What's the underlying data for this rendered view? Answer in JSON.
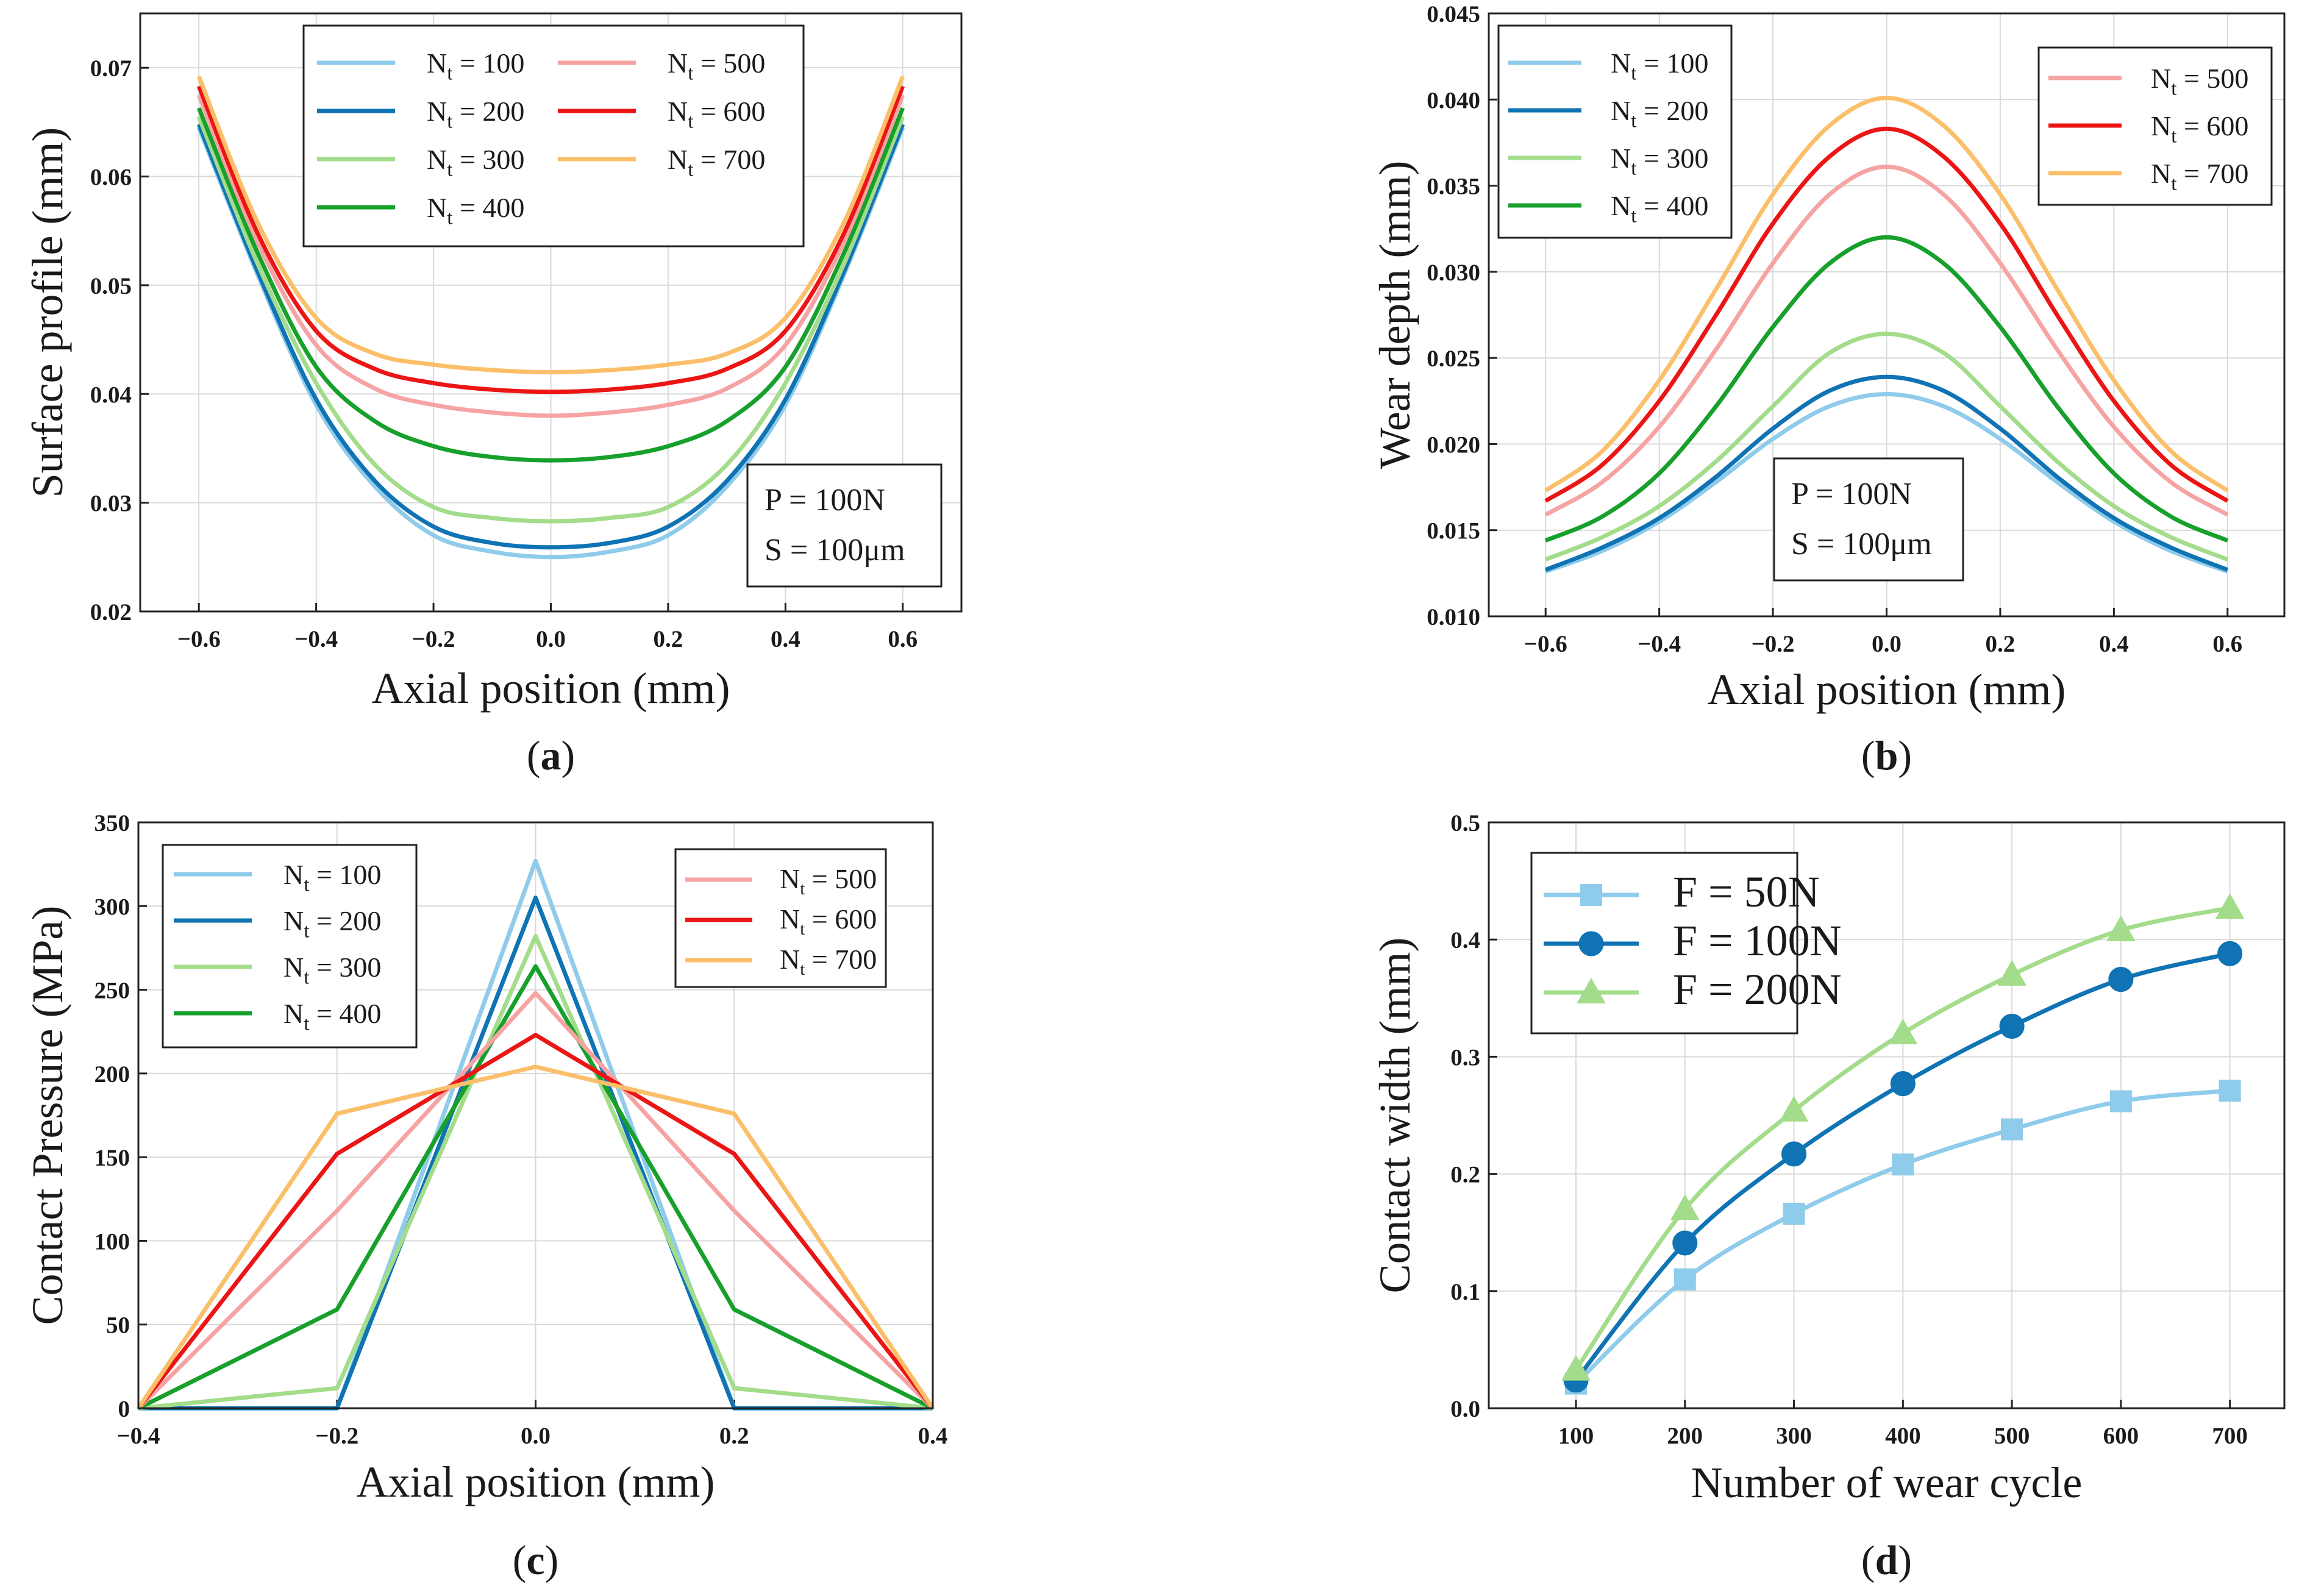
{
  "colors": {
    "nt100": "#8fcbea",
    "nt200": "#0f73b4",
    "nt300": "#a3dc8a",
    "nt400": "#17a02b",
    "nt500": "#f6a3a3",
    "nt600": "#ec1515",
    "nt700": "#fbbf6a",
    "f50": "#8fcbea",
    "f100": "#0f73b4",
    "f200": "#a3dc8a"
  },
  "chart_data": [
    {
      "id": "a",
      "type": "line",
      "caption": "a",
      "xlabel": "Axial position (mm)",
      "ylabel": "Surface profile (mm)",
      "xlim": [
        -0.7,
        0.7
      ],
      "ylim": [
        0.02,
        0.075
      ],
      "xticks": [
        -0.6,
        -0.4,
        -0.2,
        0.0,
        0.2,
        0.4,
        0.6
      ],
      "xtick_labels": [
        "−0.6",
        "−0.4",
        "−0.2",
        "0.0",
        "0.2",
        "0.4",
        "0.6"
      ],
      "yticks": [
        0.02,
        0.03,
        0.04,
        0.05,
        0.06,
        0.07
      ],
      "ytick_labels": [
        "0.02",
        "0.03",
        "0.04",
        "0.05",
        "0.06",
        "0.07"
      ],
      "grid": true,
      "legend_position": "top",
      "legend_columns": 2,
      "annotation": [
        "P = 100N",
        "S = 100μm"
      ],
      "x": [
        -0.6,
        -0.5,
        -0.4,
        -0.3,
        -0.2,
        -0.1,
        0.0,
        0.1,
        0.2,
        0.3,
        0.4,
        0.5,
        0.6
      ],
      "series": [
        {
          "name_main": "N",
          "name_sub": "t",
          "name_rest": " = 100",
          "color_key": "nt100",
          "values": [
            0.0645,
            0.051,
            0.039,
            0.0315,
            0.027,
            0.0255,
            0.025,
            0.0255,
            0.027,
            0.0315,
            0.039,
            0.051,
            0.0645
          ]
        },
        {
          "name_main": "N",
          "name_sub": "t",
          "name_rest": " = 200",
          "color_key": "nt200",
          "values": [
            0.0648,
            0.0513,
            0.0395,
            0.032,
            0.0278,
            0.0263,
            0.0259,
            0.0263,
            0.0278,
            0.032,
            0.0395,
            0.0513,
            0.0648
          ]
        },
        {
          "name_main": "N",
          "name_sub": "t",
          "name_rest": " = 300",
          "color_key": "nt300",
          "values": [
            0.0655,
            0.052,
            0.041,
            0.0335,
            0.0296,
            0.0286,
            0.0283,
            0.0286,
            0.0296,
            0.0335,
            0.041,
            0.052,
            0.0655
          ]
        },
        {
          "name_main": "N",
          "name_sub": "t",
          "name_rest": " = 400",
          "color_key": "nt400",
          "values": [
            0.0663,
            0.053,
            0.0425,
            0.0375,
            0.0352,
            0.0342,
            0.0339,
            0.0342,
            0.0352,
            0.0375,
            0.0425,
            0.053,
            0.0663
          ]
        },
        {
          "name_main": "N",
          "name_sub": "t",
          "name_rest": " = 500",
          "color_key": "nt500",
          "values": [
            0.0675,
            0.054,
            0.0445,
            0.0405,
            0.039,
            0.0383,
            0.038,
            0.0383,
            0.039,
            0.0405,
            0.0445,
            0.054,
            0.0675
          ]
        },
        {
          "name_main": "N",
          "name_sub": "t",
          "name_rest": " = 600",
          "color_key": "nt600",
          "values": [
            0.0683,
            0.0548,
            0.0458,
            0.0423,
            0.041,
            0.0404,
            0.0402,
            0.0404,
            0.041,
            0.0423,
            0.0458,
            0.0548,
            0.0683
          ]
        },
        {
          "name_main": "N",
          "name_sub": "t",
          "name_rest": " = 700",
          "color_key": "nt700",
          "values": [
            0.0692,
            0.0558,
            0.047,
            0.0437,
            0.0427,
            0.0422,
            0.042,
            0.0422,
            0.0427,
            0.0437,
            0.047,
            0.0558,
            0.0692
          ]
        }
      ]
    },
    {
      "id": "b",
      "type": "line",
      "caption": "b",
      "xlabel": "Axial position (mm)",
      "ylabel": "Wear depth (mm)",
      "xlim": [
        -0.7,
        0.7
      ],
      "ylim": [
        0.01,
        0.045
      ],
      "xticks": [
        -0.6,
        -0.4,
        -0.2,
        0.0,
        0.2,
        0.4,
        0.6
      ],
      "xtick_labels": [
        "−0.6",
        "−0.4",
        "−0.2",
        "0.0",
        "0.2",
        "0.4",
        "0.6"
      ],
      "yticks": [
        0.01,
        0.015,
        0.02,
        0.025,
        0.03,
        0.035,
        0.04,
        0.045
      ],
      "ytick_labels": [
        "0.010",
        "0.015",
        "0.020",
        "0.025",
        "0.030",
        "0.035",
        "0.040",
        "0.045"
      ],
      "grid": true,
      "legend_position": "top-left and top-right",
      "annotation": [
        "P = 100N",
        "S = 100μm"
      ],
      "x": [
        -0.6,
        -0.5,
        -0.4,
        -0.3,
        -0.2,
        -0.1,
        0.0,
        0.1,
        0.2,
        0.3,
        0.4,
        0.5,
        0.6
      ],
      "series": [
        {
          "name_main": "N",
          "name_sub": "t",
          "name_rest": " = 100",
          "color_key": "nt100",
          "values": [
            0.0126,
            0.0138,
            0.0155,
            0.0178,
            0.0203,
            0.0222,
            0.0229,
            0.0222,
            0.0203,
            0.0178,
            0.0155,
            0.0138,
            0.0126
          ]
        },
        {
          "name_main": "N",
          "name_sub": "t",
          "name_rest": " = 200",
          "color_key": "nt200",
          "values": [
            0.0127,
            0.014,
            0.0157,
            0.0181,
            0.0209,
            0.0231,
            0.0239,
            0.0231,
            0.0209,
            0.0181,
            0.0157,
            0.014,
            0.0127
          ]
        },
        {
          "name_main": "N",
          "name_sub": "t",
          "name_rest": " = 300",
          "color_key": "nt300",
          "values": [
            0.0133,
            0.0146,
            0.0164,
            0.019,
            0.0222,
            0.0253,
            0.0264,
            0.0253,
            0.0222,
            0.019,
            0.0164,
            0.0146,
            0.0133
          ]
        },
        {
          "name_main": "N",
          "name_sub": "t",
          "name_rest": " = 400",
          "color_key": "nt400",
          "values": [
            0.0144,
            0.0158,
            0.0183,
            0.0222,
            0.0268,
            0.0305,
            0.032,
            0.0305,
            0.0268,
            0.0222,
            0.0183,
            0.0158,
            0.0144
          ]
        },
        {
          "name_main": "N",
          "name_sub": "t",
          "name_rest": " = 500",
          "color_key": "nt500",
          "values": [
            0.0159,
            0.0178,
            0.021,
            0.0255,
            0.0305,
            0.0345,
            0.0361,
            0.0345,
            0.0305,
            0.0255,
            0.021,
            0.0178,
            0.0159
          ]
        },
        {
          "name_main": "N",
          "name_sub": "t",
          "name_rest": " = 600",
          "color_key": "nt600",
          "values": [
            0.0167,
            0.0188,
            0.0225,
            0.0275,
            0.0328,
            0.0367,
            0.0383,
            0.0367,
            0.0328,
            0.0275,
            0.0225,
            0.0188,
            0.0167
          ]
        },
        {
          "name_main": "N",
          "name_sub": "t",
          "name_rest": " = 700",
          "color_key": "nt700",
          "values": [
            0.0173,
            0.0196,
            0.0237,
            0.029,
            0.0345,
            0.0385,
            0.0401,
            0.0385,
            0.0345,
            0.029,
            0.0237,
            0.0196,
            0.0173
          ]
        }
      ]
    },
    {
      "id": "c",
      "type": "line",
      "caption": "c",
      "xlabel": "Axial position (mm)",
      "ylabel": "Contact Pressure (MPa)",
      "xlim": [
        -0.4,
        0.4
      ],
      "ylim": [
        0,
        350
      ],
      "xticks": [
        -0.4,
        -0.2,
        0.0,
        0.2,
        0.4
      ],
      "xtick_labels": [
        "−0.4",
        "−0.2",
        "0.0",
        "0.2",
        "0.4"
      ],
      "yticks": [
        0,
        50,
        100,
        150,
        200,
        250,
        300,
        350
      ],
      "ytick_labels": [
        "0",
        "50",
        "100",
        "150",
        "200",
        "250",
        "300",
        "350"
      ],
      "grid": true,
      "legend_position": "top-left and top-right",
      "x": [
        -0.4,
        -0.2,
        0.0,
        0.2,
        0.4
      ],
      "series": [
        {
          "name_main": "N",
          "name_sub": "t",
          "name_rest": " = 100",
          "color_key": "nt100",
          "values": [
            0,
            0,
            327,
            0,
            0
          ]
        },
        {
          "name_main": "N",
          "name_sub": "t",
          "name_rest": " = 200",
          "color_key": "nt200",
          "values": [
            0,
            0,
            305,
            0,
            0
          ]
        },
        {
          "name_main": "N",
          "name_sub": "t",
          "name_rest": " = 300",
          "color_key": "nt300",
          "values": [
            0,
            12,
            282,
            12,
            0
          ]
        },
        {
          "name_main": "N",
          "name_sub": "t",
          "name_rest": " = 400",
          "color_key": "nt400",
          "values": [
            0,
            59,
            264,
            59,
            0
          ]
        },
        {
          "name_main": "N",
          "name_sub": "t",
          "name_rest": " = 500",
          "color_key": "nt500",
          "values": [
            0,
            118,
            248,
            118,
            0
          ]
        },
        {
          "name_main": "N",
          "name_sub": "t",
          "name_rest": " = 600",
          "color_key": "nt600",
          "values": [
            0,
            152,
            223,
            152,
            0
          ]
        },
        {
          "name_main": "N",
          "name_sub": "t",
          "name_rest": " = 700",
          "color_key": "nt700",
          "values": [
            0,
            176,
            204,
            176,
            0
          ]
        }
      ]
    },
    {
      "id": "d",
      "type": "line",
      "caption": "d",
      "xlabel": "Number of wear cycle",
      "ylabel": "Contact width (mm)",
      "xlim": [
        20,
        750
      ],
      "ylim": [
        0,
        0.5
      ],
      "xticks": [
        100,
        200,
        300,
        400,
        500,
        600,
        700
      ],
      "xtick_labels": [
        "100",
        "200",
        "300",
        "400",
        "500",
        "600",
        "700"
      ],
      "yticks": [
        0,
        0.1,
        0.2,
        0.3,
        0.4,
        0.5
      ],
      "ytick_labels": [
        "0.0",
        "0.1",
        "0.2",
        "0.3",
        "0.4",
        "0.5"
      ],
      "grid": true,
      "legend_position": "top-left",
      "x": [
        100,
        200,
        300,
        400,
        500,
        600,
        700
      ],
      "series": [
        {
          "name": "F = 50N",
          "marker": "square",
          "color_key": "f50",
          "values": [
            0.021,
            0.11,
            0.166,
            0.208,
            0.238,
            0.262,
            0.271
          ]
        },
        {
          "name": "F = 100N",
          "marker": "circle",
          "color_key": "f100",
          "values": [
            0.024,
            0.141,
            0.217,
            0.277,
            0.326,
            0.366,
            0.388
          ]
        },
        {
          "name": "F = 200N",
          "marker": "triangle",
          "color_key": "f200",
          "values": [
            0.033,
            0.17,
            0.254,
            0.32,
            0.37,
            0.408,
            0.427
          ]
        }
      ]
    }
  ]
}
